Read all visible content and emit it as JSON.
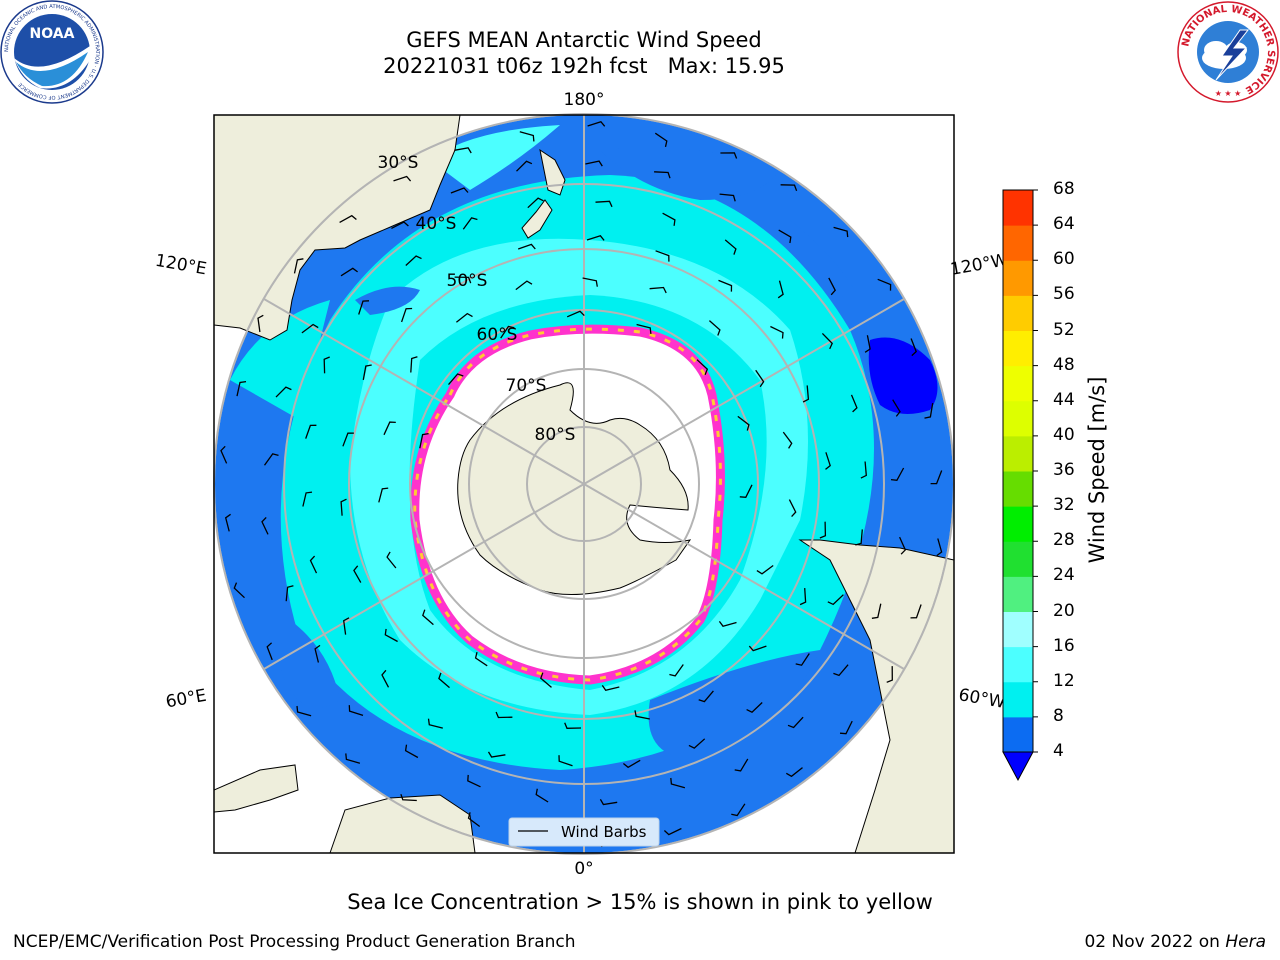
{
  "header": {
    "title_line1": "GEFS MEAN Antarctic Wind Speed",
    "title_line2": "20221031 t06z 192h fcst   Max: 15.95"
  },
  "map": {
    "lon_labels": {
      "top": "180°",
      "bottom": "0°",
      "upper_left": "120°E",
      "upper_right": "120°W",
      "lower_left": "60°E",
      "lower_right": "60°W"
    },
    "lat_labels": [
      "30°S",
      "40°S",
      "50°S",
      "60°S",
      "70°S",
      "80°S"
    ],
    "legend_label": "Wind Barbs",
    "colors": {
      "land": "#eeeedc",
      "ocean_4_8": "#1e78f0",
      "ocean_8_12": "#00f0f0",
      "ocean_12_16": "#4cffff",
      "ocean_below_4": "#0000ff",
      "sea_ice_edge_pink": "#ff33cc",
      "sea_ice_edge_yellow": "#ffcc33",
      "graticule": "#b4b4b4"
    }
  },
  "colorbar": {
    "title": "Wind Speed [m/s]",
    "ticks": [
      "4",
      "8",
      "12",
      "16",
      "20",
      "24",
      "28",
      "32",
      "36",
      "40",
      "44",
      "48",
      "52",
      "56",
      "60",
      "64",
      "68"
    ],
    "colors": [
      "#0c6cf2",
      "#00f0f0",
      "#4cffff",
      "#a0ffff",
      "#50f080",
      "#20e030",
      "#00ee00",
      "#66dd00",
      "#bbee00",
      "#ddff00",
      "#eeff00",
      "#ffee00",
      "#ffcc00",
      "#ff9900",
      "#ff6600",
      "#ff3300",
      "#ff0000"
    ],
    "under_color": "#0000ff"
  },
  "caption": "Sea Ice Concentration > 15% is shown in pink to yellow",
  "footer": {
    "left": "NCEP/EMC/Verification Post Processing Product Generation Branch",
    "right_date": "02 Nov 2022 on",
    "right_host": "Hera"
  },
  "logos": {
    "noaa_text": "NOAA",
    "noaa_ring_text": "NATIONAL OCEANIC AND ATMOSPHERIC ADMINISTRATION · U.S. DEPARTMENT OF COMMERCE",
    "nws_ring_text": "NATIONAL WEATHER SERVICE"
  }
}
